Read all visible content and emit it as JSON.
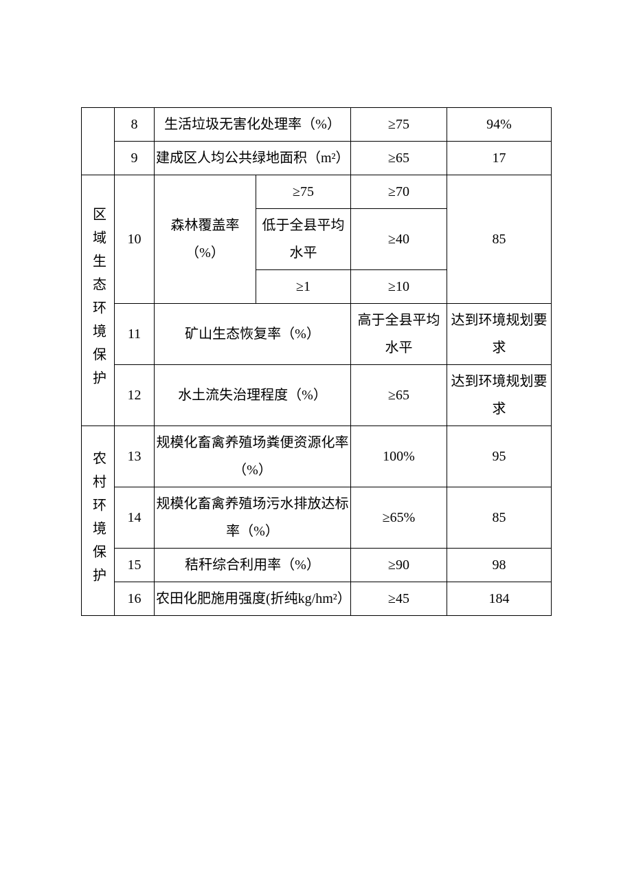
{
  "rows": {
    "r8": {
      "num": "8",
      "indicator": "生活垃圾无害化处理率（%）",
      "std": "≥75",
      "val": "94%"
    },
    "r9": {
      "num": "9",
      "indicator": "建成区人均公共绿地面积（m²）",
      "std": "≥65",
      "val": "17"
    },
    "cat_region": "区域生态环境保护",
    "r10": {
      "num": "10",
      "indicator": "森林覆盖率（%）",
      "sub1": {
        "left": "≥75",
        "right": "≥70"
      },
      "sub2": {
        "left": "低于全县平均水平",
        "right": "≥40"
      },
      "sub3": {
        "left": "≥1",
        "right": "≥10"
      },
      "val": "85"
    },
    "r11": {
      "num": "11",
      "indicator": "矿山生态恢复率（%）",
      "std": "高于全县平均水平",
      "val": "达到环境规划要求"
    },
    "r12": {
      "num": "12",
      "indicator": "水土流失治理程度（%）",
      "std": "≥65",
      "val": "达到环境规划要求"
    },
    "cat_rural": "农村环境保护",
    "r13": {
      "num": "13",
      "indicator": "规模化畜禽养殖场粪便资源化率（%）",
      "std": "100%",
      "val": "95"
    },
    "r14": {
      "num": "14",
      "indicator": "规模化畜禽养殖场污水排放达标率（%）",
      "std": "≥65%",
      "val": "85"
    },
    "r15": {
      "num": "15",
      "indicator": "秸秆综合利用率（%）",
      "std": "≥90",
      "val": "98"
    },
    "r16": {
      "num": "16",
      "indicator": "农田化肥施用强度(折纯kg/hm²）",
      "std": "≥45",
      "val": "184"
    }
  }
}
